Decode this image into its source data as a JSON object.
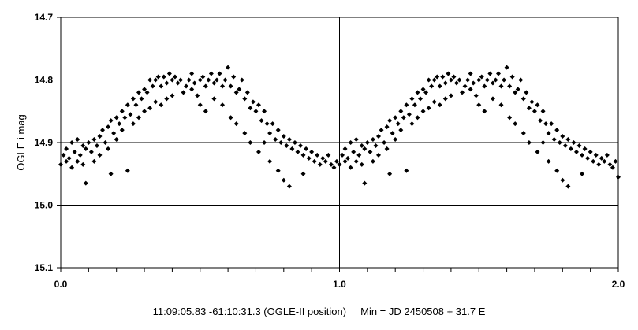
{
  "chart_data": {
    "type": "scatter",
    "title": "",
    "xlabel": "",
    "ylabel": "OGLE i mag",
    "xlim": [
      0.0,
      2.0
    ],
    "ylim": [
      14.7,
      15.1
    ],
    "y_inverted": true,
    "x_ticks": [
      "0.0",
      "1.0",
      "2.0"
    ],
    "y_ticks": [
      "14.7",
      "14.8",
      "14.9",
      "15.0",
      "15.1"
    ],
    "x_tick_values": [
      0.0,
      1.0,
      2.0
    ],
    "y_tick_values": [
      14.7,
      14.8,
      14.9,
      15.0,
      15.1
    ],
    "x_minor_step": 0.1,
    "grid": {
      "horizontal": true,
      "vertical_at": [
        1.0
      ]
    },
    "marker": "diamond",
    "marker_color": "#000000",
    "caption": "11:09:05.83 -61:10:31.3 (OGLE-II position)     Min = JD 2450508 + 31.7 E",
    "series": [
      {
        "name": "",
        "points": [
          [
            0.0,
            14.935
          ],
          [
            0.01,
            14.92
          ],
          [
            0.02,
            14.93
          ],
          [
            0.02,
            14.91
          ],
          [
            0.03,
            14.925
          ],
          [
            0.04,
            14.9
          ],
          [
            0.04,
            14.94
          ],
          [
            0.05,
            14.915
          ],
          [
            0.06,
            14.93
          ],
          [
            0.06,
            14.895
          ],
          [
            0.07,
            14.92
          ],
          [
            0.08,
            14.905
          ],
          [
            0.08,
            14.935
          ],
          [
            0.09,
            14.91
          ],
          [
            0.09,
            14.965
          ],
          [
            0.1,
            14.9
          ],
          [
            0.11,
            14.915
          ],
          [
            0.12,
            14.895
          ],
          [
            0.12,
            14.93
          ],
          [
            0.13,
            14.905
          ],
          [
            0.14,
            14.89
          ],
          [
            0.14,
            14.92
          ],
          [
            0.15,
            14.88
          ],
          [
            0.16,
            14.9
          ],
          [
            0.17,
            14.875
          ],
          [
            0.17,
            14.91
          ],
          [
            0.18,
            14.865
          ],
          [
            0.18,
            14.95
          ],
          [
            0.19,
            14.885
          ],
          [
            0.2,
            14.86
          ],
          [
            0.2,
            14.895
          ],
          [
            0.21,
            14.87
          ],
          [
            0.22,
            14.85
          ],
          [
            0.22,
            14.88
          ],
          [
            0.23,
            14.86
          ],
          [
            0.24,
            14.84
          ],
          [
            0.24,
            14.945
          ],
          [
            0.25,
            14.855
          ],
          [
            0.26,
            14.83
          ],
          [
            0.26,
            14.87
          ],
          [
            0.27,
            14.84
          ],
          [
            0.28,
            14.82
          ],
          [
            0.28,
            14.86
          ],
          [
            0.29,
            14.83
          ],
          [
            0.3,
            14.815
          ],
          [
            0.3,
            14.85
          ],
          [
            0.31,
            14.82
          ],
          [
            0.32,
            14.8
          ],
          [
            0.32,
            14.845
          ],
          [
            0.33,
            14.81
          ],
          [
            0.34,
            14.8
          ],
          [
            0.34,
            14.835
          ],
          [
            0.35,
            14.795
          ],
          [
            0.36,
            14.81
          ],
          [
            0.36,
            14.84
          ],
          [
            0.37,
            14.795
          ],
          [
            0.38,
            14.805
          ],
          [
            0.38,
            14.83
          ],
          [
            0.39,
            14.79
          ],
          [
            0.4,
            14.8
          ],
          [
            0.4,
            14.825
          ],
          [
            0.41,
            14.795
          ],
          [
            0.42,
            14.805
          ],
          [
            0.43,
            14.8
          ],
          [
            0.44,
            14.82
          ],
          [
            0.45,
            14.81
          ],
          [
            0.46,
            14.8
          ],
          [
            0.47,
            14.815
          ],
          [
            0.47,
            14.79
          ],
          [
            0.48,
            14.805
          ],
          [
            0.49,
            14.825
          ],
          [
            0.5,
            14.8
          ],
          [
            0.5,
            14.84
          ],
          [
            0.51,
            14.795
          ],
          [
            0.52,
            14.81
          ],
          [
            0.52,
            14.85
          ],
          [
            0.53,
            14.8
          ],
          [
            0.54,
            14.79
          ],
          [
            0.55,
            14.805
          ],
          [
            0.55,
            14.83
          ],
          [
            0.56,
            14.8
          ],
          [
            0.57,
            14.79
          ],
          [
            0.58,
            14.81
          ],
          [
            0.58,
            14.84
          ],
          [
            0.59,
            14.8
          ],
          [
            0.6,
            14.78
          ],
          [
            0.61,
            14.81
          ],
          [
            0.61,
            14.86
          ],
          [
            0.62,
            14.795
          ],
          [
            0.63,
            14.82
          ],
          [
            0.63,
            14.87
          ],
          [
            0.64,
            14.815
          ],
          [
            0.65,
            14.8
          ],
          [
            0.66,
            14.83
          ],
          [
            0.66,
            14.885
          ],
          [
            0.67,
            14.82
          ],
          [
            0.68,
            14.845
          ],
          [
            0.68,
            14.9
          ],
          [
            0.69,
            14.835
          ],
          [
            0.7,
            14.85
          ],
          [
            0.71,
            14.84
          ],
          [
            0.71,
            14.915
          ],
          [
            0.72,
            14.865
          ],
          [
            0.73,
            14.85
          ],
          [
            0.73,
            14.9
          ],
          [
            0.74,
            14.87
          ],
          [
            0.75,
            14.885
          ],
          [
            0.75,
            14.93
          ],
          [
            0.76,
            14.87
          ],
          [
            0.77,
            14.895
          ],
          [
            0.78,
            14.88
          ],
          [
            0.78,
            14.945
          ],
          [
            0.79,
            14.9
          ],
          [
            0.8,
            14.89
          ],
          [
            0.8,
            14.96
          ],
          [
            0.81,
            14.905
          ],
          [
            0.82,
            14.895
          ],
          [
            0.82,
            14.97
          ],
          [
            0.83,
            14.91
          ],
          [
            0.84,
            14.9
          ],
          [
            0.85,
            14.915
          ],
          [
            0.86,
            14.905
          ],
          [
            0.87,
            14.92
          ],
          [
            0.87,
            14.95
          ],
          [
            0.88,
            14.91
          ],
          [
            0.89,
            14.925
          ],
          [
            0.9,
            14.915
          ],
          [
            0.91,
            14.93
          ],
          [
            0.92,
            14.92
          ],
          [
            0.93,
            14.935
          ],
          [
            0.94,
            14.925
          ],
          [
            0.95,
            14.93
          ],
          [
            0.96,
            14.92
          ],
          [
            0.97,
            14.935
          ],
          [
            0.98,
            14.94
          ],
          [
            0.99,
            14.93
          ],
          [
            1.0,
            14.935
          ],
          [
            1.01,
            14.92
          ],
          [
            1.02,
            14.93
          ],
          [
            1.02,
            14.91
          ],
          [
            1.03,
            14.925
          ],
          [
            1.04,
            14.9
          ],
          [
            1.04,
            14.94
          ],
          [
            1.05,
            14.915
          ],
          [
            1.06,
            14.93
          ],
          [
            1.06,
            14.895
          ],
          [
            1.07,
            14.92
          ],
          [
            1.08,
            14.905
          ],
          [
            1.08,
            14.935
          ],
          [
            1.09,
            14.91
          ],
          [
            1.09,
            14.965
          ],
          [
            1.1,
            14.9
          ],
          [
            1.11,
            14.915
          ],
          [
            1.12,
            14.895
          ],
          [
            1.12,
            14.93
          ],
          [
            1.13,
            14.905
          ],
          [
            1.14,
            14.89
          ],
          [
            1.14,
            14.92
          ],
          [
            1.15,
            14.88
          ],
          [
            1.16,
            14.9
          ],
          [
            1.17,
            14.875
          ],
          [
            1.17,
            14.91
          ],
          [
            1.18,
            14.865
          ],
          [
            1.18,
            14.95
          ],
          [
            1.19,
            14.885
          ],
          [
            1.2,
            14.86
          ],
          [
            1.2,
            14.895
          ],
          [
            1.21,
            14.87
          ],
          [
            1.22,
            14.85
          ],
          [
            1.22,
            14.88
          ],
          [
            1.23,
            14.86
          ],
          [
            1.24,
            14.84
          ],
          [
            1.24,
            14.945
          ],
          [
            1.25,
            14.855
          ],
          [
            1.26,
            14.83
          ],
          [
            1.26,
            14.87
          ],
          [
            1.27,
            14.84
          ],
          [
            1.28,
            14.82
          ],
          [
            1.28,
            14.86
          ],
          [
            1.29,
            14.83
          ],
          [
            1.3,
            14.815
          ],
          [
            1.3,
            14.85
          ],
          [
            1.31,
            14.82
          ],
          [
            1.32,
            14.8
          ],
          [
            1.32,
            14.845
          ],
          [
            1.33,
            14.81
          ],
          [
            1.34,
            14.8
          ],
          [
            1.34,
            14.835
          ],
          [
            1.35,
            14.795
          ],
          [
            1.36,
            14.81
          ],
          [
            1.36,
            14.84
          ],
          [
            1.37,
            14.795
          ],
          [
            1.38,
            14.805
          ],
          [
            1.38,
            14.83
          ],
          [
            1.39,
            14.79
          ],
          [
            1.4,
            14.8
          ],
          [
            1.4,
            14.825
          ],
          [
            1.41,
            14.795
          ],
          [
            1.42,
            14.805
          ],
          [
            1.43,
            14.8
          ],
          [
            1.44,
            14.82
          ],
          [
            1.45,
            14.81
          ],
          [
            1.46,
            14.8
          ],
          [
            1.47,
            14.815
          ],
          [
            1.47,
            14.79
          ],
          [
            1.48,
            14.805
          ],
          [
            1.49,
            14.825
          ],
          [
            1.5,
            14.8
          ],
          [
            1.5,
            14.84
          ],
          [
            1.51,
            14.795
          ],
          [
            1.52,
            14.81
          ],
          [
            1.52,
            14.85
          ],
          [
            1.53,
            14.8
          ],
          [
            1.54,
            14.79
          ],
          [
            1.55,
            14.805
          ],
          [
            1.55,
            14.83
          ],
          [
            1.56,
            14.8
          ],
          [
            1.57,
            14.79
          ],
          [
            1.58,
            14.81
          ],
          [
            1.58,
            14.84
          ],
          [
            1.59,
            14.8
          ],
          [
            1.6,
            14.78
          ],
          [
            1.61,
            14.81
          ],
          [
            1.61,
            14.86
          ],
          [
            1.62,
            14.795
          ],
          [
            1.63,
            14.82
          ],
          [
            1.63,
            14.87
          ],
          [
            1.64,
            14.815
          ],
          [
            1.65,
            14.8
          ],
          [
            1.66,
            14.83
          ],
          [
            1.66,
            14.885
          ],
          [
            1.67,
            14.82
          ],
          [
            1.68,
            14.845
          ],
          [
            1.68,
            14.9
          ],
          [
            1.69,
            14.835
          ],
          [
            1.7,
            14.85
          ],
          [
            1.71,
            14.84
          ],
          [
            1.71,
            14.915
          ],
          [
            1.72,
            14.865
          ],
          [
            1.73,
            14.85
          ],
          [
            1.73,
            14.9
          ],
          [
            1.74,
            14.87
          ],
          [
            1.75,
            14.885
          ],
          [
            1.75,
            14.93
          ],
          [
            1.76,
            14.87
          ],
          [
            1.77,
            14.895
          ],
          [
            1.78,
            14.88
          ],
          [
            1.78,
            14.945
          ],
          [
            1.79,
            14.9
          ],
          [
            1.8,
            14.89
          ],
          [
            1.8,
            14.96
          ],
          [
            1.81,
            14.905
          ],
          [
            1.82,
            14.895
          ],
          [
            1.82,
            14.97
          ],
          [
            1.83,
            14.91
          ],
          [
            1.84,
            14.9
          ],
          [
            1.85,
            14.915
          ],
          [
            1.86,
            14.905
          ],
          [
            1.87,
            14.92
          ],
          [
            1.87,
            14.95
          ],
          [
            1.88,
            14.91
          ],
          [
            1.89,
            14.925
          ],
          [
            1.9,
            14.915
          ],
          [
            1.91,
            14.93
          ],
          [
            1.92,
            14.92
          ],
          [
            1.93,
            14.935
          ],
          [
            1.94,
            14.925
          ],
          [
            1.95,
            14.93
          ],
          [
            1.96,
            14.92
          ],
          [
            1.97,
            14.935
          ],
          [
            1.98,
            14.94
          ],
          [
            1.99,
            14.93
          ],
          [
            2.0,
            14.955
          ]
        ]
      }
    ]
  }
}
